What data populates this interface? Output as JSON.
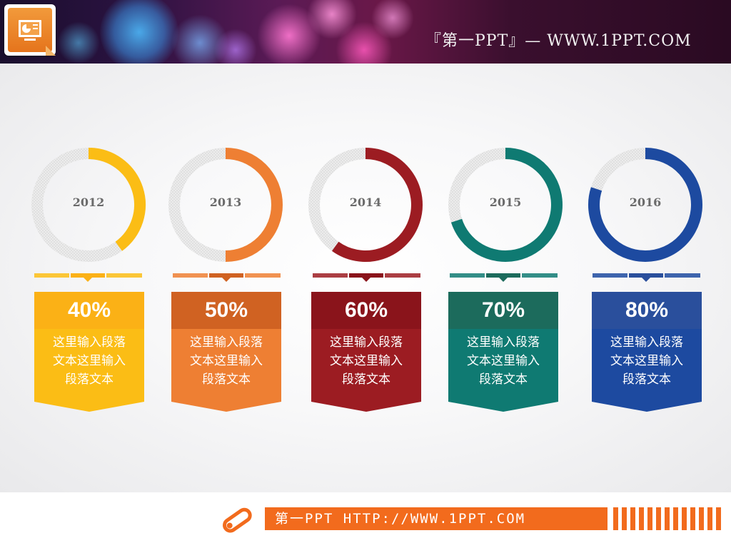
{
  "header": {
    "title": "『第一PPT』— WWW.1PPT.COM",
    "logo_icon": "powerpoint-icon"
  },
  "chart_data": {
    "type": "donut",
    "categories": [
      "2012",
      "2013",
      "2014",
      "2015",
      "2016"
    ],
    "values": [
      40,
      50,
      60,
      70,
      80
    ],
    "unit": "%",
    "colors": [
      "#fbbd15",
      "#ee7f33",
      "#9c1c22",
      "#0f7a72",
      "#1d4aa0"
    ],
    "header_colors": [
      "#fbb116",
      "#d06222",
      "#8a141b",
      "#1c6b5c",
      "#2a4f9c"
    ],
    "track_color": "#e6e6e6"
  },
  "cards": [
    {
      "year": "2012",
      "percent": "40%",
      "text": "这里输入段落文本这里输入段落文本"
    },
    {
      "year": "2013",
      "percent": "50%",
      "text": "这里输入段落文本这里输入段落文本"
    },
    {
      "year": "2014",
      "percent": "60%",
      "text": "这里输入段落文本这里输入段落文本"
    },
    {
      "year": "2015",
      "percent": "70%",
      "text": "这里输入段落文本这里输入段落文本"
    },
    {
      "year": "2016",
      "percent": "80%",
      "text": "这里输入段落文本这里输入段落文本"
    }
  ],
  "footer": {
    "text": "第一PPT HTTP://WWW.1PPT.COM",
    "pen_icon": "pencil-icon"
  }
}
